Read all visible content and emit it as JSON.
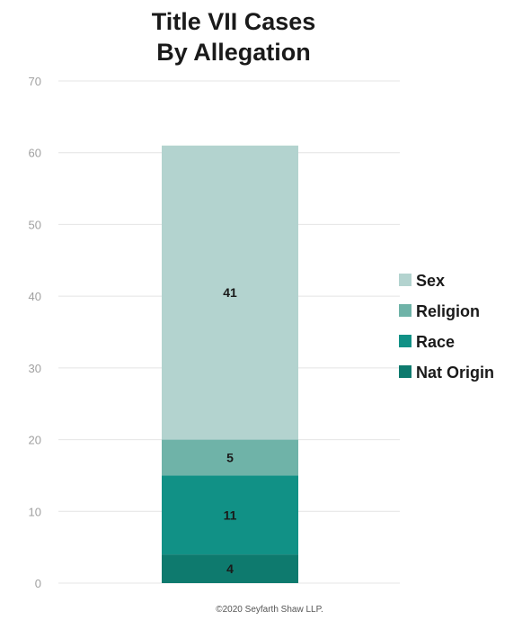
{
  "chart_data": {
    "type": "bar",
    "stacked": true,
    "title": [
      "Title VII Cases",
      "By Allegation"
    ],
    "xlabel": "",
    "ylabel": "",
    "ylim": [
      0,
      70
    ],
    "yticks": [
      0,
      10,
      20,
      30,
      40,
      50,
      60,
      70
    ],
    "categories": [
      ""
    ],
    "grid": true,
    "legend_position": "right",
    "series": [
      {
        "name": "Nat Origin",
        "values": [
          4
        ],
        "label": "4",
        "color": "#0e7a6e"
      },
      {
        "name": "Race",
        "values": [
          11
        ],
        "label": "11",
        "color": "#119186"
      },
      {
        "name": "Religion",
        "values": [
          5
        ],
        "label": "5",
        "color": "#6fb3a8"
      },
      {
        "name": "Sex",
        "values": [
          41
        ],
        "label": "41",
        "color": "#b3d3cf"
      }
    ],
    "legend_order": [
      "Sex",
      "Religion",
      "Race",
      "Nat Origin"
    ]
  },
  "footer": "©2020 Seyfarth Shaw LLP."
}
